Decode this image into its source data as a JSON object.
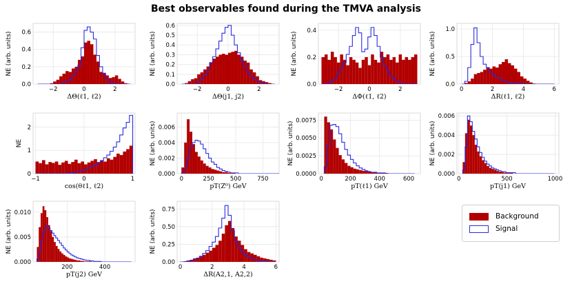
{
  "title": "Best observables found during the TMVA analysis",
  "legend": {
    "items": [
      {
        "label": "Background",
        "color": "#b20000",
        "style": "filled"
      },
      {
        "label": "Signal",
        "color": "#2a2ae0",
        "style": "step"
      }
    ]
  },
  "colors": {
    "background": "#b20000",
    "signal": "#2a2ae0",
    "grid": "#e6e6e6"
  },
  "chart_data": [
    {
      "type": "histogram",
      "xlabel": "ΔΘ(ℓ1, ℓ2)",
      "ylabel": "NE (arb. units)",
      "xlim": [
        -3.3,
        3.3
      ],
      "ylim": [
        0,
        0.7
      ],
      "xticks": [
        {
          "v": -2,
          "t": "−2"
        },
        {
          "v": 0,
          "t": "0"
        },
        {
          "v": 2,
          "t": "2"
        }
      ],
      "yticks": [
        {
          "v": 0,
          "t": "0.0"
        },
        {
          "v": 0.2,
          "t": "0.2"
        },
        {
          "v": 0.4,
          "t": "0.4"
        },
        {
          "v": 0.6,
          "t": "0.6"
        }
      ],
      "bins": {
        "start": -3.0,
        "width": 0.2
      },
      "background": [
        0,
        0,
        0,
        0,
        0.01,
        0.03,
        0.05,
        0.09,
        0.12,
        0.15,
        0.14,
        0.18,
        0.2,
        0.28,
        0.32,
        0.48,
        0.5,
        0.46,
        0.34,
        0.26,
        0.14,
        0.13,
        0.1,
        0.07,
        0.08,
        0.1,
        0.06,
        0.03,
        0.01,
        0
      ],
      "signal": [
        0,
        0,
        0,
        0,
        0,
        0,
        0,
        0,
        0.02,
        0.03,
        0.05,
        0.1,
        0.15,
        0.22,
        0.42,
        0.62,
        0.66,
        0.6,
        0.52,
        0.33,
        0.2,
        0.12,
        0.05,
        0.02,
        0.01,
        0,
        0,
        0,
        0,
        0
      ]
    },
    {
      "type": "histogram",
      "xlabel": "ΔΘ(j1, j2)",
      "ylabel": "NE (arb. units)",
      "xlim": [
        -3.3,
        3.3
      ],
      "ylim": [
        0,
        0.62
      ],
      "xticks": [
        {
          "v": -2,
          "t": "−2"
        },
        {
          "v": 0,
          "t": "0"
        },
        {
          "v": 2,
          "t": "2"
        }
      ],
      "yticks": [
        {
          "v": 0,
          "t": "0.0"
        },
        {
          "v": 0.1,
          "t": "0.1"
        },
        {
          "v": 0.2,
          "t": "0.2"
        },
        {
          "v": 0.3,
          "t": "0.3"
        },
        {
          "v": 0.4,
          "t": "0.4"
        },
        {
          "v": 0.5,
          "t": "0.5"
        },
        {
          "v": 0.6,
          "t": "0.6"
        }
      ],
      "bins": {
        "start": -3.0,
        "width": 0.2
      },
      "background": [
        0,
        0.01,
        0.03,
        0.05,
        0.06,
        0.1,
        0.12,
        0.15,
        0.18,
        0.22,
        0.26,
        0.28,
        0.3,
        0.31,
        0.3,
        0.32,
        0.33,
        0.34,
        0.3,
        0.28,
        0.24,
        0.22,
        0.15,
        0.12,
        0.08,
        0.04,
        0.03,
        0.02,
        0.01,
        0
      ],
      "signal": [
        0,
        0,
        0,
        0,
        0,
        0.02,
        0.05,
        0.09,
        0.14,
        0.22,
        0.28,
        0.36,
        0.44,
        0.52,
        0.58,
        0.6,
        0.5,
        0.4,
        0.32,
        0.24,
        0.18,
        0.12,
        0.08,
        0.05,
        0.03,
        0.02,
        0.01,
        0,
        0,
        0
      ]
    },
    {
      "type": "histogram",
      "xlabel": "ΔΦ(ℓ1, ℓ2)",
      "ylabel": "NE (arb. units)",
      "xlim": [
        -3.3,
        3.3
      ],
      "ylim": [
        0,
        0.45
      ],
      "xticks": [
        {
          "v": -2,
          "t": "−2"
        },
        {
          "v": 0,
          "t": "0"
        },
        {
          "v": 2,
          "t": "2"
        }
      ],
      "yticks": [
        {
          "v": 0,
          "t": "0.0"
        },
        {
          "v": 0.2,
          "t": "0.2"
        },
        {
          "v": 0.4,
          "t": "0.4"
        }
      ],
      "bins": {
        "start": -3.1,
        "width": 0.2
      },
      "background": [
        0.2,
        0.22,
        0.18,
        0.24,
        0.2,
        0.16,
        0.22,
        0.18,
        0.14,
        0.2,
        0.18,
        0.16,
        0.12,
        0.18,
        0.2,
        0.14,
        0.22,
        0.18,
        0.16,
        0.24,
        0.2,
        0.22,
        0.18,
        0.2,
        0.16,
        0.22,
        0.18,
        0.2,
        0.18,
        0.2,
        0.22
      ],
      "signal": [
        0,
        0,
        0.01,
        0.02,
        0.04,
        0.08,
        0.12,
        0.16,
        0.22,
        0.28,
        0.36,
        0.42,
        0.38,
        0.24,
        0.26,
        0.35,
        0.42,
        0.36,
        0.28,
        0.2,
        0.14,
        0.1,
        0.06,
        0.04,
        0.02,
        0.01,
        0,
        0,
        0,
        0,
        0
      ]
    },
    {
      "type": "histogram",
      "xlabel": "ΔR(ℓ1, ℓ2)",
      "ylabel": "NE (arb. units)",
      "xlim": [
        -0.3,
        6.3
      ],
      "ylim": [
        0,
        1.1
      ],
      "xticks": [
        {
          "v": 0,
          "t": "0"
        },
        {
          "v": 2,
          "t": "2"
        },
        {
          "v": 4,
          "t": "4"
        },
        {
          "v": 6,
          "t": "6"
        }
      ],
      "yticks": [
        {
          "v": 0,
          "t": "0.0"
        },
        {
          "v": 0.5,
          "t": "0.5"
        },
        {
          "v": 1.0,
          "t": "1.0"
        }
      ],
      "bins": {
        "start": 0,
        "width": 0.2
      },
      "background": [
        0,
        0.02,
        0.05,
        0.1,
        0.18,
        0.2,
        0.22,
        0.26,
        0.3,
        0.28,
        0.32,
        0.3,
        0.36,
        0.4,
        0.45,
        0.38,
        0.34,
        0.28,
        0.22,
        0.14,
        0.1,
        0.06,
        0.03,
        0.01,
        0,
        0,
        0,
        0,
        0,
        0
      ],
      "signal": [
        0,
        0.05,
        0.3,
        0.72,
        1.02,
        0.75,
        0.5,
        0.36,
        0.3,
        0.2,
        0.16,
        0.12,
        0.1,
        0.06,
        0.04,
        0.03,
        0.02,
        0.02,
        0.01,
        0.01,
        0,
        0,
        0,
        0,
        0,
        0,
        0,
        0,
        0,
        0
      ]
    },
    {
      "type": "histogram",
      "xlabel": "cos(θℓ1, ℓ2)",
      "ylabel": "NE",
      "xlim": [
        -1.05,
        1.05
      ],
      "ylim": [
        0,
        2.6
      ],
      "xticks": [
        {
          "v": -1,
          "t": "−1"
        },
        {
          "v": 0,
          "t": "0"
        },
        {
          "v": 1,
          "t": "1"
        }
      ],
      "yticks": [
        {
          "v": 0,
          "t": "0"
        },
        {
          "v": 1,
          "t": "1"
        },
        {
          "v": 2,
          "t": "2"
        }
      ],
      "bins": {
        "start": -1.0,
        "width": 0.0667
      },
      "background": [
        0.52,
        0.45,
        0.58,
        0.4,
        0.5,
        0.46,
        0.52,
        0.38,
        0.48,
        0.55,
        0.42,
        0.5,
        0.6,
        0.45,
        0.52,
        0.4,
        0.48,
        0.55,
        0.62,
        0.5,
        0.58,
        0.52,
        0.66,
        0.6,
        0.72,
        0.86,
        0.8,
        0.95,
        1.05,
        1.2
      ],
      "signal": [
        0,
        0,
        0,
        0,
        0,
        0,
        0,
        0,
        0,
        0,
        0.02,
        0.04,
        0.06,
        0.1,
        0.14,
        0.18,
        0.24,
        0.3,
        0.38,
        0.46,
        0.56,
        0.68,
        0.8,
        0.96,
        1.14,
        1.36,
        1.66,
        1.96,
        2.2,
        2.5
      ]
    },
    {
      "type": "histogram",
      "xlabel": "pT(Z⁰) GeV",
      "ylabel": "NE (arb. units)",
      "xlim": [
        -40,
        900
      ],
      "ylim": [
        0,
        0.0078
      ],
      "xticks": [
        {
          "v": 0,
          "t": "0"
        },
        {
          "v": 250,
          "t": "250"
        },
        {
          "v": 500,
          "t": "500"
        },
        {
          "v": 750,
          "t": "750"
        }
      ],
      "yticks": [
        {
          "v": 0,
          "t": "0.000"
        },
        {
          "v": 0.002,
          "t": "0.002"
        },
        {
          "v": 0.004,
          "t": "0.004"
        },
        {
          "v": 0.006,
          "t": "0.006"
        }
      ],
      "bins": {
        "start": 0,
        "width": 25
      },
      "background": [
        0.0008,
        0.004,
        0.007,
        0.0054,
        0.0038,
        0.0028,
        0.0022,
        0.0017,
        0.0013,
        0.001,
        0.0008,
        0.0006,
        0.0005,
        0.0004,
        0.0003,
        0.0002,
        0.0002,
        0.0001,
        0.0001,
        0.0001,
        0,
        0,
        0,
        0,
        0,
        0,
        0,
        0,
        0,
        0,
        0,
        0,
        0,
        0,
        0,
        0
      ],
      "signal": [
        0.0001,
        0.0007,
        0.002,
        0.0034,
        0.004,
        0.0043,
        0.0042,
        0.0038,
        0.0032,
        0.0026,
        0.002,
        0.0015,
        0.0012,
        0.0008,
        0.0006,
        0.0004,
        0.0003,
        0.0002,
        0.0001,
        0.0001,
        0.0001,
        0,
        0,
        0,
        0,
        0,
        0,
        0,
        0,
        0,
        0,
        0,
        0,
        0,
        0,
        0
      ]
    },
    {
      "type": "histogram",
      "xlabel": "pT(ℓ1) GeV",
      "ylabel": "NE (arb. units)",
      "xlim": [
        -20,
        680
      ],
      "ylim": [
        0,
        0.0085
      ],
      "xticks": [
        {
          "v": 0,
          "t": "0"
        },
        {
          "v": 200,
          "t": "200"
        },
        {
          "v": 400,
          "t": "400"
        },
        {
          "v": 600,
          "t": "600"
        }
      ],
      "yticks": [
        {
          "v": 0,
          "t": "0.0000"
        },
        {
          "v": 0.0025,
          "t": "0.0025"
        },
        {
          "v": 0.005,
          "t": "0.0050"
        },
        {
          "v": 0.0075,
          "t": "0.0075"
        }
      ],
      "bins": {
        "start": 20,
        "width": 20
      },
      "background": [
        0.008,
        0.0072,
        0.0062,
        0.0048,
        0.0036,
        0.0026,
        0.002,
        0.0015,
        0.0011,
        0.0009,
        0.0007,
        0.0006,
        0.0005,
        0.0004,
        0.0004,
        0.0003,
        0.0002,
        0.0002,
        0.0001,
        0.0001,
        0.0001,
        0.0001,
        0,
        0,
        0,
        0,
        0,
        0,
        0,
        0,
        0
      ],
      "signal": [
        0.001,
        0.004,
        0.0068,
        0.0069,
        0.0066,
        0.0056,
        0.0044,
        0.0034,
        0.0026,
        0.002,
        0.0015,
        0.0011,
        0.0008,
        0.0006,
        0.0004,
        0.0003,
        0.0002,
        0.0002,
        0.0001,
        0.0001,
        0.0001,
        0,
        0,
        0,
        0,
        0,
        0,
        0,
        0,
        0,
        0
      ]
    },
    {
      "type": "histogram",
      "xlabel": "pT(j1) GeV",
      "ylabel": "NE (arb. units)",
      "xlim": [
        -20,
        1040
      ],
      "ylim": [
        0,
        0.0063
      ],
      "xticks": [
        {
          "v": 0,
          "t": "0"
        },
        {
          "v": 500,
          "t": "500"
        },
        {
          "v": 1000,
          "t": "1000"
        }
      ],
      "yticks": [
        {
          "v": 0,
          "t": "0.000"
        },
        {
          "v": 0.002,
          "t": "0.002"
        },
        {
          "v": 0.004,
          "t": "0.004"
        },
        {
          "v": 0.006,
          "t": "0.006"
        }
      ],
      "bins": {
        "start": 40,
        "width": 25
      },
      "background": [
        0.0012,
        0.0042,
        0.0056,
        0.005,
        0.004,
        0.003,
        0.0023,
        0.0018,
        0.0014,
        0.0011,
        0.0008,
        0.0006,
        0.0005,
        0.0004,
        0.0003,
        0.0002,
        0.0002,
        0.0001,
        0.0001,
        0.0001,
        0.0001,
        0,
        0,
        0,
        0,
        0,
        0,
        0,
        0,
        0,
        0,
        0,
        0,
        0,
        0,
        0,
        0,
        0
      ],
      "signal": [
        0.0004,
        0.0028,
        0.006,
        0.0054,
        0.0044,
        0.0036,
        0.0028,
        0.0022,
        0.0017,
        0.0013,
        0.001,
        0.0008,
        0.0006,
        0.0005,
        0.0004,
        0.0003,
        0.0002,
        0.0002,
        0.0001,
        0.0001,
        0.0001,
        0.0001,
        0,
        0,
        0,
        0,
        0,
        0,
        0,
        0,
        0,
        0,
        0,
        0,
        0,
        0,
        0,
        0
      ]
    },
    {
      "type": "histogram",
      "xlabel": "pT(j2) GeV",
      "ylabel": "NE (arb. units)",
      "xlim": [
        20,
        560
      ],
      "ylim": [
        0,
        0.0122
      ],
      "xticks": [
        {
          "v": 200,
          "t": "200"
        },
        {
          "v": 400,
          "t": "400"
        }
      ],
      "yticks": [
        {
          "v": 0,
          "t": "0.000"
        },
        {
          "v": 0.005,
          "t": "0.005"
        },
        {
          "v": 0.01,
          "t": "0.010"
        }
      ],
      "bins": {
        "start": 40,
        "width": 10
      },
      "background": [
        0.003,
        0.007,
        0.0098,
        0.0112,
        0.0104,
        0.009,
        0.0074,
        0.0062,
        0.005,
        0.004,
        0.0032,
        0.0026,
        0.0021,
        0.0017,
        0.0014,
        0.0011,
        0.0009,
        0.0007,
        0.0006,
        0.0005,
        0.0004,
        0.0003,
        0.0003,
        0.0002,
        0.0002,
        0.0001,
        0.0001,
        0.0001,
        0.0001,
        0,
        0,
        0,
        0,
        0,
        0,
        0,
        0,
        0,
        0,
        0,
        0,
        0,
        0,
        0,
        0,
        0,
        0,
        0,
        0,
        0
      ],
      "signal": [
        0.0006,
        0.002,
        0.0042,
        0.006,
        0.007,
        0.0072,
        0.0068,
        0.0063,
        0.0058,
        0.0053,
        0.0048,
        0.0043,
        0.0038,
        0.0033,
        0.0028,
        0.0024,
        0.002,
        0.0017,
        0.0014,
        0.0012,
        0.001,
        0.0008,
        0.0007,
        0.0006,
        0.0005,
        0.0004,
        0.0003,
        0.0003,
        0.0002,
        0.0002,
        0.0001,
        0.0001,
        0.0001,
        0.0001,
        0,
        0,
        0,
        0,
        0,
        0,
        0,
        0,
        0,
        0,
        0,
        0,
        0,
        0,
        0,
        0
      ]
    },
    {
      "type": "histogram",
      "xlabel": "ΔR(A2,1, A2,2)",
      "ylabel": "NE (arb. units)",
      "xlim": [
        -0.2,
        6.2
      ],
      "ylim": [
        0,
        0.86
      ],
      "xticks": [
        {
          "v": 0,
          "t": "0"
        },
        {
          "v": 2,
          "t": "2"
        },
        {
          "v": 4,
          "t": "4"
        },
        {
          "v": 6,
          "t": "6"
        }
      ],
      "yticks": [
        {
          "v": 0,
          "t": "0.00"
        },
        {
          "v": 0.25,
          "t": "0.25"
        },
        {
          "v": 0.5,
          "t": "0.50"
        },
        {
          "v": 0.75,
          "t": "0.75"
        }
      ],
      "bins": {
        "start": 0,
        "width": 0.2
      },
      "background": [
        0,
        0.01,
        0.02,
        0.03,
        0.05,
        0.06,
        0.08,
        0.1,
        0.13,
        0.16,
        0.2,
        0.24,
        0.3,
        0.4,
        0.52,
        0.58,
        0.48,
        0.36,
        0.3,
        0.24,
        0.18,
        0.14,
        0.12,
        0.1,
        0.08,
        0.06,
        0.05,
        0.04,
        0.03,
        0.02
      ],
      "signal": [
        0,
        0,
        0.01,
        0.02,
        0.03,
        0.05,
        0.08,
        0.12,
        0.16,
        0.22,
        0.28,
        0.36,
        0.48,
        0.62,
        0.8,
        0.66,
        0.44,
        0.3,
        0.2,
        0.14,
        0.1,
        0.07,
        0.05,
        0.03,
        0.02,
        0.01,
        0.01,
        0,
        0,
        0
      ]
    }
  ]
}
